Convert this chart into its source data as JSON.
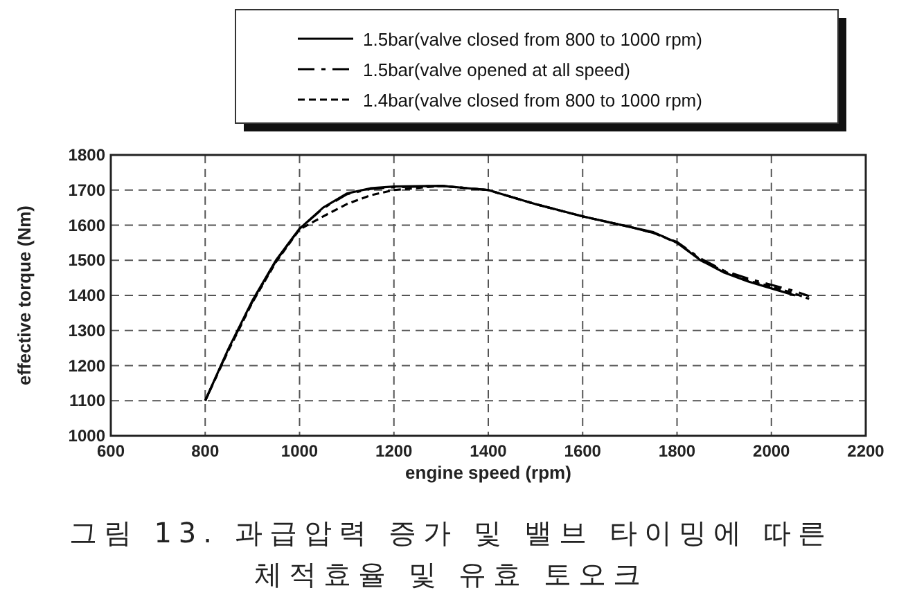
{
  "chart_data": {
    "type": "line",
    "xlabel": "engine speed (rpm)",
    "ylabel": "effective torque (Nm)",
    "xlim": [
      600,
      2200
    ],
    "xticks": [
      600,
      800,
      1000,
      1200,
      1400,
      1600,
      1800,
      2000,
      2200
    ],
    "ylim": [
      1000,
      1800
    ],
    "yticks": [
      1000,
      1100,
      1200,
      1300,
      1400,
      1500,
      1600,
      1700,
      1800
    ],
    "grid": true,
    "legend": "top",
    "series": [
      {
        "name": "1.5bar(valve closed from 800 to 1000 rpm)",
        "color": "#000000",
        "line_style": "solid",
        "x": [
          800,
          850,
          900,
          950,
          1000,
          1050,
          1100,
          1150,
          1200,
          1300,
          1400,
          1500,
          1600,
          1700,
          1750,
          1800,
          1850,
          1900,
          1950,
          2000,
          2050
        ],
        "values": [
          1100,
          1250,
          1385,
          1500,
          1590,
          1650,
          1690,
          1705,
          1710,
          1712,
          1700,
          1660,
          1625,
          1595,
          1580,
          1550,
          1500,
          1465,
          1440,
          1420,
          1400
        ]
      },
      {
        "name": "1.5bar(valve opened at all speed)",
        "color": "#000000",
        "line_style": "dashdot",
        "x": [
          800,
          850,
          900,
          950,
          1000,
          1050,
          1100,
          1150,
          1200,
          1300,
          1400,
          1500,
          1600,
          1700,
          1750,
          1800,
          1850,
          1900,
          1950,
          2000,
          2050,
          2080
        ],
        "values": [
          1100,
          1248,
          1382,
          1498,
          1590,
          1648,
          1688,
          1703,
          1708,
          1712,
          1700,
          1660,
          1625,
          1595,
          1578,
          1552,
          1505,
          1470,
          1448,
          1430,
          1412,
          1398
        ]
      },
      {
        "name": "1.4bar(valve closed from 800 to 1000 rpm)",
        "color": "#000000",
        "line_style": "dashed",
        "x": [
          800,
          850,
          900,
          950,
          1000,
          1050,
          1100,
          1150,
          1200,
          1300,
          1400,
          1500,
          1600,
          1700,
          1750,
          1800,
          1850,
          1900,
          1950,
          2000,
          2050,
          2080
        ],
        "values": [
          1100,
          1245,
          1380,
          1495,
          1588,
          1625,
          1660,
          1685,
          1700,
          1712,
          1700,
          1660,
          1625,
          1595,
          1578,
          1550,
          1502,
          1468,
          1442,
          1425,
          1405,
          1390
        ]
      }
    ],
    "annotations": [
      "그림 13. 과급압력 증가 및 밸브 타이밍에 따른 체적효율 및 유효 토오크"
    ]
  }
}
